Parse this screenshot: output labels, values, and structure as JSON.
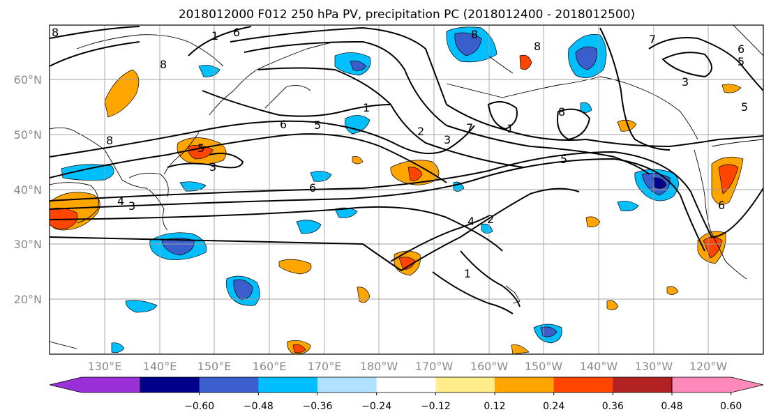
{
  "title": "2018012000 F012 250 hPa PV, precipitation PC (2018012400 - 2018012500)",
  "lat_labels": [
    "20°N",
    "30°N",
    "40°N",
    "50°N",
    "60°N"
  ],
  "lon_labels": [
    "130°E",
    "140°E",
    "150°E",
    "160°E",
    "170°E",
    "180°W",
    "170°W",
    "160°W",
    "150°W",
    "140°W",
    "130°W",
    "120°W"
  ],
  "colorbar": {
    "colors": [
      "#9b30d8",
      "#00008b",
      "#3a5fcd",
      "#00bfff",
      "#b0e2ff",
      "#ffffff",
      "#ffec8b",
      "#ffa500",
      "#ff4500",
      "#b22222",
      "#ff88bb"
    ],
    "tick_labels": [
      "−0.60",
      "−0.48",
      "−0.36",
      "−0.24",
      "−0.12",
      "0.12",
      "0.24",
      "0.36",
      "0.48",
      "0.60"
    ]
  },
  "contour_labels": [
    "8",
    "6",
    "1",
    "8",
    "8",
    "8",
    "3",
    "5",
    "6",
    "5",
    "1",
    "2",
    "3",
    "7",
    "7",
    "1",
    "8",
    "5",
    "5",
    "3",
    "8",
    "5",
    "4",
    "3",
    "6",
    "4",
    "2",
    "1",
    "6"
  ]
}
